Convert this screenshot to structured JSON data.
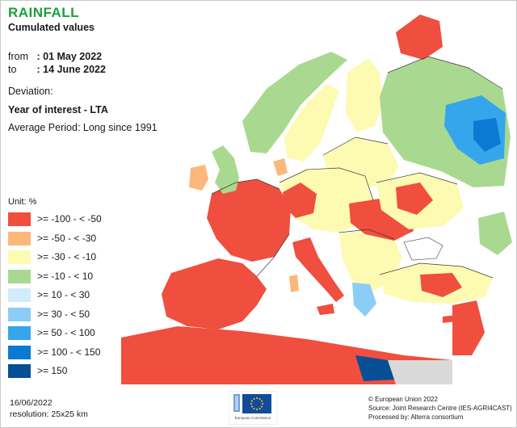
{
  "header": {
    "title": "RAINFALL",
    "subtitle": "Cumulated values"
  },
  "period": {
    "from_label": "from",
    "from_value": ": 01 May 2022",
    "to_label": "to",
    "to_value": ": 14 June 2022"
  },
  "deviation": {
    "label": "Deviation:",
    "mode": "Year of interest - LTA",
    "average_period": "Average Period: Long since 1991"
  },
  "legend": {
    "unit": "Unit:  %",
    "classes": [
      {
        "label": ">= -100 - < -50",
        "color": "#f04e3e"
      },
      {
        "label": ">= -50 - < -30",
        "color": "#fcb87a"
      },
      {
        "label": ">= -30 - < -10",
        "color": "#fdfab2"
      },
      {
        "label": ">= -10 - < 10",
        "color": "#a9d990"
      },
      {
        "label": ">= 10 - < 30",
        "color": "#d2ecfb"
      },
      {
        "label": ">= 30 - < 50",
        "color": "#8ccdf5"
      },
      {
        "label": ">= 50 - < 100",
        "color": "#36a6ec"
      },
      {
        "label": ">= 100 - < 150",
        "color": "#0b7ad4"
      },
      {
        "label": ">= 150",
        "color": "#064f95"
      }
    ]
  },
  "footer": {
    "date": "16/06/2022",
    "resolution": "resolution:  25x25 km",
    "copyright": "© European Union 2022",
    "source": "Source: Joint Research Centre (IES-AGRI4CAST)",
    "processed": "Processed by: Alterra consortium",
    "logo_caption": "European Commission"
  },
  "colors": {
    "title": "#1aa03a",
    "sea": "#ffffff",
    "non_eu_land": "#d9d9d9",
    "border": "#3a3a3a"
  }
}
